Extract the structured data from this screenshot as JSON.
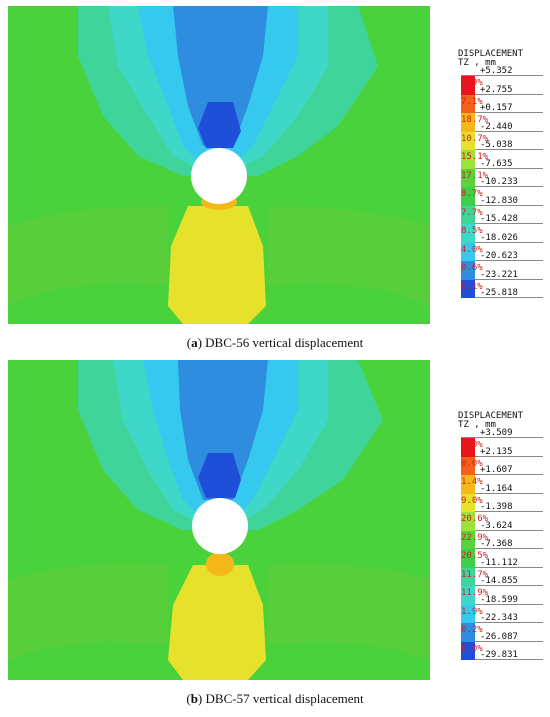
{
  "panels": [
    {
      "caption_letter": "a",
      "caption_text": " DBC-56 vertical displacement",
      "legend_title": "DISPLACEMENT",
      "legend_subtitle": "TZ , mm",
      "ticks": [
        "+5.352",
        "+2.755",
        "+0.157",
        "-2.440",
        "-5.038",
        "-7.635",
        "-10.233",
        "-12.830",
        "-15.428",
        "-18.026",
        "-20.623",
        "-23.221",
        "-25.818"
      ],
      "percents": [
        "1.9%",
        "7.1%",
        "18.7%",
        "10.7%",
        "15.1%",
        "17.1%",
        "8.7%",
        "7.7%",
        "8.5%",
        "4.0%",
        "0.6%",
        "0.1%"
      ]
    },
    {
      "caption_letter": "b",
      "caption_text": " DBC-57 vertical displacement",
      "legend_title": "DISPLACEMENT",
      "legend_subtitle": "TZ , mm",
      "ticks": [
        "+3.509",
        "+2.135",
        "+1.607",
        "-1.164",
        "-1.398",
        "-3.624",
        "-7.368",
        "-11.112",
        "-14.855",
        "-18.599",
        "-22.343",
        "-26.087",
        "-29.831"
      ],
      "percents": [
        "0.0%",
        "0.0%",
        "1.4%",
        "9.0%",
        "20.6%",
        "22.9%",
        "20.5%",
        "11.7%",
        "11.9%",
        "1.9%",
        "0.2%",
        "0.0%"
      ]
    }
  ],
  "colors": [
    "#e8141b",
    "#f2601a",
    "#f4b81a",
    "#e6e12a",
    "#9ee03c",
    "#5ad33a",
    "#3fcf4a",
    "#3fd59a",
    "#3fd8c8",
    "#35c9f0",
    "#2f8de0",
    "#1f4fd8"
  ],
  "colormap_names": [
    "red",
    "orange-red",
    "orange",
    "yellow",
    "yellow-green",
    "green",
    "green",
    "teal-green",
    "teal",
    "cyan",
    "light-blue",
    "blue"
  ]
}
